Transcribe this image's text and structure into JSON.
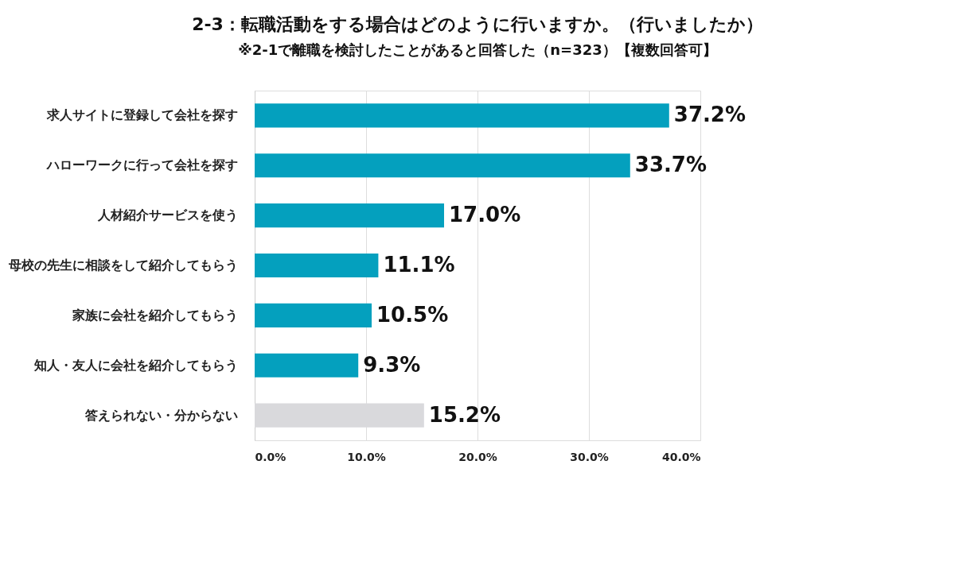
{
  "chart_data": {
    "type": "bar",
    "orientation": "horizontal",
    "title": "2-3：転職活動をする場合はどのように行いますか。（行いましたか）",
    "subtitle": "※2-1で離職を検討したことがあると回答した（n=323）【複数回答可】",
    "categories": [
      "求人サイトに登録して会社を探す",
      "ハローワークに行って会社を探す",
      "人材紹介サービスを使う",
      "母校の先生に相談をして紹介してもらう",
      "家族に会社を紹介してもらう",
      "知人・友人に会社を紹介してもらう",
      "答えられない・分からない"
    ],
    "values": [
      37.2,
      33.7,
      17.0,
      11.1,
      10.5,
      9.3,
      15.2
    ],
    "value_labels": [
      "37.2%",
      "33.7%",
      "17.0%",
      "11.1%",
      "10.5%",
      "9.3%",
      "15.2%"
    ],
    "colors": [
      "#04a0be",
      "#04a0be",
      "#04a0be",
      "#04a0be",
      "#04a0be",
      "#04a0be",
      "#d9d9dc"
    ],
    "xlim": [
      0,
      40
    ],
    "xticks": [
      {
        "value": 0,
        "label": "0.0%"
      },
      {
        "value": 10,
        "label": "10.0%"
      },
      {
        "value": 20,
        "label": "20.0%"
      },
      {
        "value": 30,
        "label": "30.0%"
      },
      {
        "value": 40,
        "label": "40.0%"
      }
    ],
    "grid": "x",
    "legend": false
  }
}
